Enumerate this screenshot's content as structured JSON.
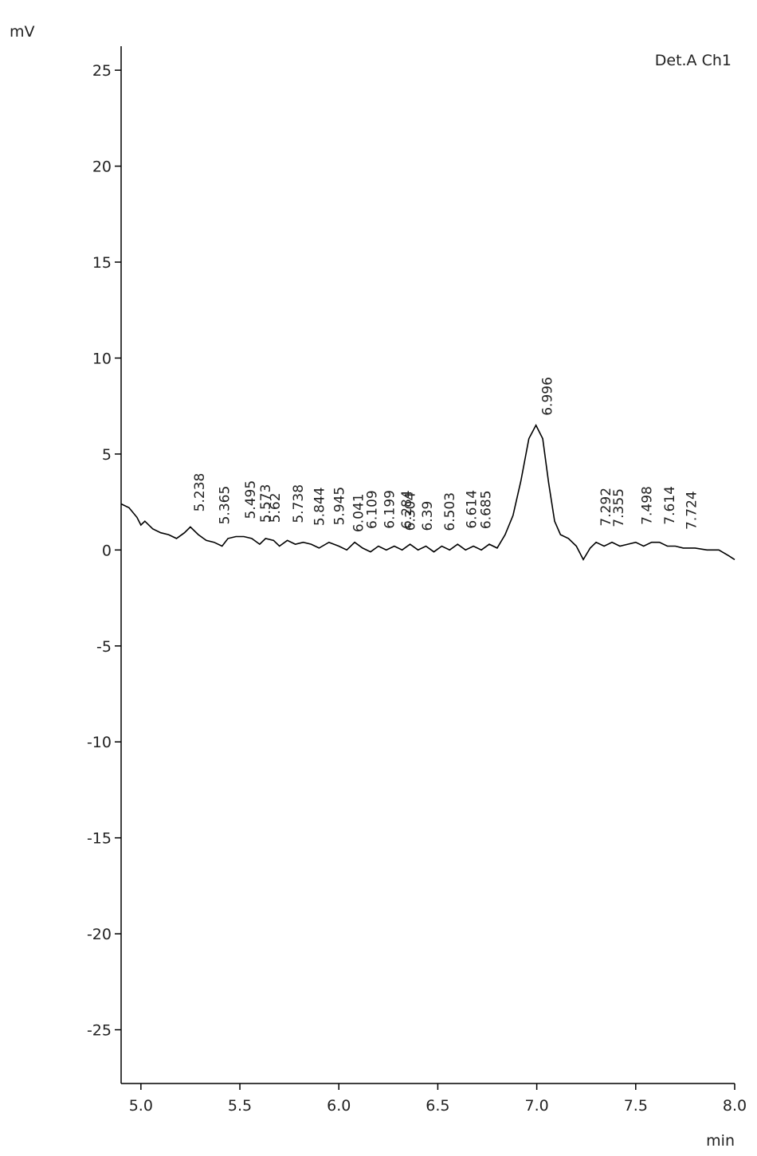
{
  "chart_data": {
    "type": "line",
    "y_label": "mV",
    "x_label": "min",
    "annotation": "Det.A Ch1",
    "xlim": [
      4.9,
      8.0
    ],
    "ylim": [
      -27.8,
      26.25
    ],
    "xticks": [
      {
        "value": 5,
        "label": "5.0"
      },
      5.5,
      {
        "value": 6,
        "label": "6.0"
      },
      6.5,
      {
        "value": 7,
        "label": "7.0"
      },
      7.5,
      {
        "value": 8,
        "label": "8.0"
      }
    ],
    "yticks": [
      -25,
      -20,
      -15,
      -10,
      -5,
      0,
      5,
      10,
      15,
      20,
      25
    ],
    "grid": false,
    "color": "#000000",
    "x": [
      4.9,
      4.94,
      4.98,
      5.0,
      5.02,
      5.06,
      5.1,
      5.14,
      5.18,
      5.22,
      5.25,
      5.29,
      5.33,
      5.37,
      5.41,
      5.44,
      5.48,
      5.52,
      5.56,
      5.6,
      5.63,
      5.67,
      5.7,
      5.74,
      5.78,
      5.82,
      5.86,
      5.9,
      5.95,
      6.0,
      6.04,
      6.08,
      6.12,
      6.16,
      6.2,
      6.24,
      6.28,
      6.32,
      6.36,
      6.4,
      6.44,
      6.48,
      6.52,
      6.56,
      6.6,
      6.64,
      6.68,
      6.72,
      6.76,
      6.8,
      6.84,
      6.88,
      6.92,
      6.96,
      6.996,
      7.03,
      7.06,
      7.09,
      7.12,
      7.16,
      7.2,
      7.235,
      7.27,
      7.3,
      7.34,
      7.38,
      7.42,
      7.46,
      7.5,
      7.54,
      7.58,
      7.62,
      7.66,
      7.7,
      7.74,
      7.8,
      7.86,
      7.92,
      7.97,
      8.0
    ],
    "values": [
      2.4,
      2.2,
      1.7,
      1.3,
      1.5,
      1.1,
      0.9,
      0.8,
      0.6,
      0.9,
      1.2,
      0.8,
      0.5,
      0.4,
      0.2,
      0.6,
      0.7,
      0.7,
      0.6,
      0.3,
      0.6,
      0.5,
      0.2,
      0.5,
      0.3,
      0.4,
      0.3,
      0.1,
      0.4,
      0.2,
      0.0,
      0.4,
      0.1,
      -0.1,
      0.2,
      0.0,
      0.2,
      0.0,
      0.3,
      0.0,
      0.2,
      -0.1,
      0.2,
      0.0,
      0.3,
      0.0,
      0.2,
      0.0,
      0.3,
      0.1,
      0.8,
      1.8,
      3.6,
      5.8,
      6.5,
      5.8,
      3.5,
      1.5,
      0.8,
      0.6,
      0.2,
      -0.5,
      0.1,
      0.4,
      0.2,
      0.4,
      0.2,
      0.3,
      0.4,
      0.2,
      0.4,
      0.4,
      0.2,
      0.2,
      0.1,
      0.1,
      0.0,
      0.0,
      -0.3,
      -0.5
    ],
    "peak_labels": [
      5.238,
      5.365,
      5.495,
      5.573,
      5.62,
      5.738,
      5.844,
      5.945,
      6.041,
      6.109,
      6.199,
      6.284,
      6.304,
      6.39,
      6.503,
      6.614,
      6.685,
      6.996,
      7.292,
      7.355,
      7.498,
      7.614,
      7.724
    ]
  }
}
